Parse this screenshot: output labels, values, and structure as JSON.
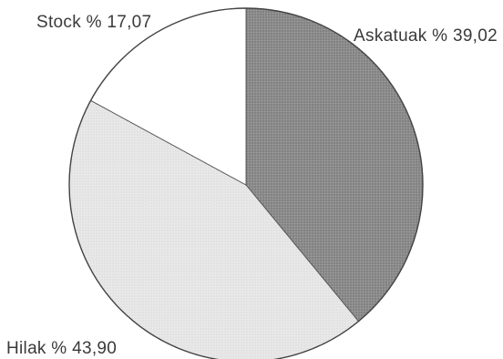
{
  "chart_data": {
    "type": "pie",
    "slices": [
      {
        "label": "Askatuak % 39,02",
        "value": 39.02,
        "fill": "#8d8d8d",
        "pattern": "dense-dots"
      },
      {
        "label": "Hilak % 43,90",
        "value": 43.9,
        "fill": "#e6e6e6",
        "pattern": "light-dots"
      },
      {
        "label": "Stock % 17,07",
        "value": 17.07,
        "fill": "#ffffff",
        "pattern": "none"
      }
    ],
    "start": "12 o'clock",
    "direction": "clockwise",
    "legend": "none",
    "title": ""
  }
}
